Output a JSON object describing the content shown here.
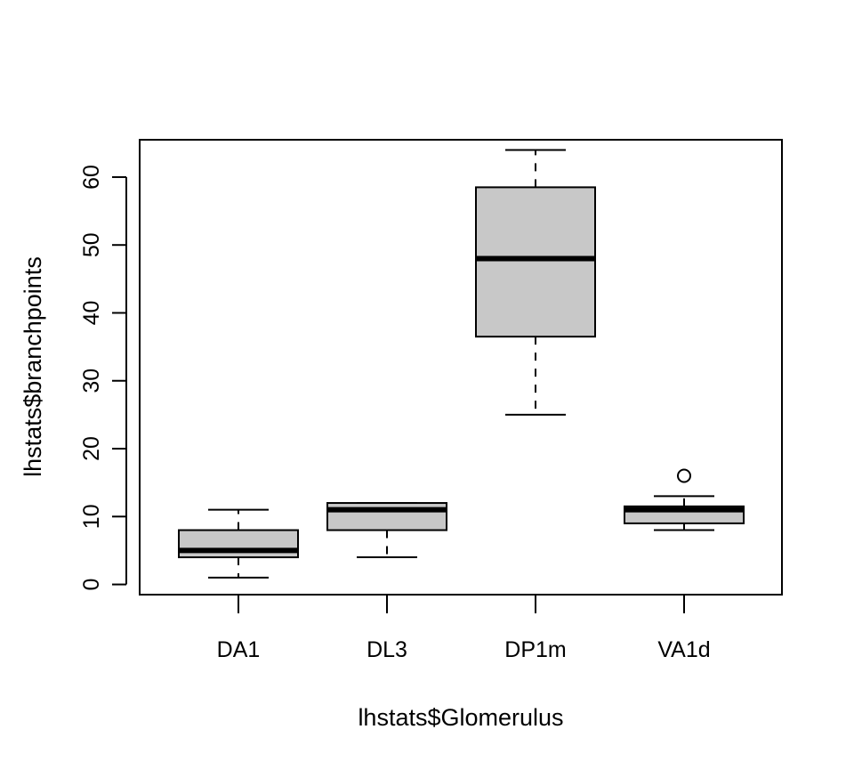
{
  "chart_data": {
    "type": "boxplot",
    "title": "",
    "xlabel": "lhstats$Glomerulus",
    "ylabel": "lhstats$branchpoints",
    "ylim": [
      -1.5,
      65.5
    ],
    "yticks": [
      0,
      10,
      20,
      30,
      40,
      50,
      60
    ],
    "ytick_labels": [
      "0",
      "10",
      "20",
      "30",
      "40",
      "50",
      "60"
    ],
    "categories": [
      "DA1",
      "DL3",
      "DP1m",
      "VA1d"
    ],
    "box_fill": "#c8c8c8",
    "line_color": "#000000",
    "boxes": [
      {
        "name": "DA1",
        "whisker_low": 1,
        "q1": 4,
        "median": 5,
        "q3": 8,
        "whisker_high": 11,
        "outliers": []
      },
      {
        "name": "DL3",
        "whisker_low": 4,
        "q1": 8,
        "median": 11,
        "q3": 12,
        "whisker_high": 12,
        "outliers": []
      },
      {
        "name": "DP1m",
        "whisker_low": 25,
        "q1": 36.5,
        "median": 48,
        "q3": 58.5,
        "whisker_high": 64,
        "outliers": []
      },
      {
        "name": "VA1d",
        "whisker_low": 8,
        "q1": 9,
        "median": 11,
        "q3": 11.5,
        "whisker_high": 13,
        "outliers": [
          16
        ]
      }
    ]
  }
}
